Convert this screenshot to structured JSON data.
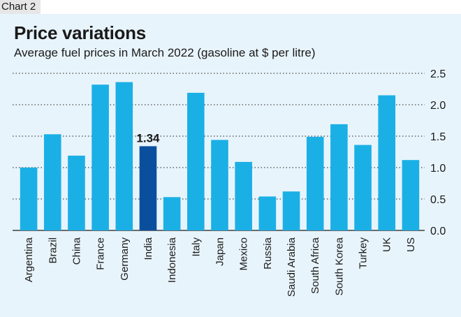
{
  "header": {
    "chart_label": "Chart 2"
  },
  "chart_data": {
    "type": "bar",
    "title": "Price variations",
    "subtitle": "Average fuel prices in March 2022 (gasoline at $ per litre)",
    "categories": [
      "Argentina",
      "Brazil",
      "China",
      "France",
      "Germany",
      "India",
      "Indonesia",
      "Italy",
      "Japan",
      "Mexico",
      "Russia",
      "Saudi Arabia",
      "South Africa",
      "South Korea",
      "Turkey",
      "UK",
      "US"
    ],
    "values": [
      1.0,
      1.53,
      1.19,
      2.32,
      2.36,
      1.34,
      0.53,
      2.19,
      1.44,
      1.09,
      0.54,
      0.62,
      1.49,
      1.69,
      1.36,
      2.15,
      1.12
    ],
    "highlight_category": "India",
    "data_labels": {
      "India": "1.34"
    },
    "ylim": [
      0,
      2.5
    ],
    "yticks": [
      "0.0",
      "0.5",
      "1.0",
      "1.5",
      "2.0",
      "2.5"
    ],
    "ytick_values": [
      0,
      0.5,
      1.0,
      1.5,
      2.0,
      2.5
    ],
    "y_axis_position": "right",
    "grid": "horizontal dotted",
    "colors": {
      "bar": "#1ab0e6",
      "highlight": "#0a4f9e",
      "background": "#e8f4fb",
      "label_band": "#e6e6e6"
    }
  }
}
